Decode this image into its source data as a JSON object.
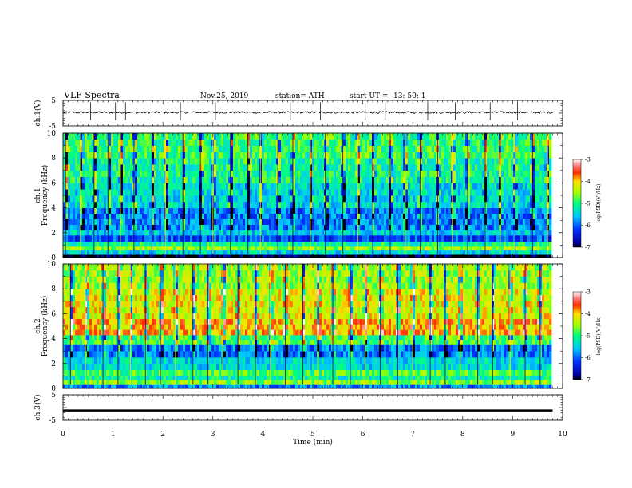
{
  "header": {
    "title": "VLF  Spectra",
    "date": "Nov.25, 2019",
    "station": "station= ATH",
    "start_ut_label": "start  UT  =",
    "start_ut_value": "13: 50: 1"
  },
  "chart_data": [
    {
      "type": "line",
      "panel": "ch1-waveform",
      "ylabel": "ch.1(V)",
      "ylim": [
        -5,
        5
      ],
      "yticks": [
        "5",
        "-5"
      ],
      "xlim": [
        0,
        10
      ],
      "x_end": 9.8,
      "baseline": 0.3,
      "noise_amplitude": 0.4,
      "spike_times": [
        0.55,
        1.05,
        1.25,
        1.7,
        2.35,
        3.05,
        3.6,
        4.55,
        5.15,
        6.05,
        6.45,
        7.3,
        7.85,
        8.55,
        9.1
      ],
      "color": "#000000"
    },
    {
      "type": "heatmap",
      "panel": "ch1-spectrogram",
      "ylabel": "ch.1\nFrequency  (kHz)",
      "xlim": [
        0,
        10
      ],
      "x_end": 9.8,
      "ylim": [
        0,
        10
      ],
      "yticks": [
        "0",
        "2",
        "4",
        "6",
        "8",
        "10"
      ],
      "color_range": [
        -7,
        -3
      ],
      "colorbar_ticks": [
        "-3",
        "-4",
        "-5",
        "-6",
        "-7"
      ],
      "colorbar_label": "log(PSD)(V²/Hz)",
      "bands": [
        {
          "f": [
            0,
            0.25
          ],
          "v": -7.0
        },
        {
          "f": [
            0.25,
            0.6
          ],
          "v": -5.4
        },
        {
          "f": [
            0.6,
            0.9
          ],
          "v": -4.5
        },
        {
          "f": [
            0.9,
            1.3
          ],
          "v": -5.1
        },
        {
          "f": [
            1.3,
            1.8
          ],
          "v": -6.1
        },
        {
          "f": [
            1.8,
            2.2
          ],
          "v": -5.5
        },
        {
          "f": [
            2.2,
            4.0
          ],
          "v": -5.9
        },
        {
          "f": [
            4.0,
            6.0
          ],
          "v": -5.4
        },
        {
          "f": [
            6.0,
            8.0
          ],
          "v": -5.1
        },
        {
          "f": [
            8.0,
            10.0
          ],
          "v": -4.9
        }
      ],
      "sferic_times": [
        0.05,
        0.35,
        0.62,
        0.9,
        1.15,
        1.42,
        1.78,
        2.05,
        2.4,
        2.75,
        3.0,
        3.35,
        3.7,
        3.95,
        4.3,
        4.6,
        4.95,
        5.25,
        5.6,
        5.9,
        6.2,
        6.55,
        6.85,
        7.15,
        7.5,
        7.8,
        8.1,
        8.45,
        8.75,
        9.05,
        9.4,
        9.7
      ]
    },
    {
      "type": "heatmap",
      "panel": "ch2-spectrogram",
      "ylabel": "ch.2\nFrequency  (kHz)",
      "xlim": [
        0,
        10
      ],
      "x_end": 9.8,
      "ylim": [
        0,
        10
      ],
      "yticks": [
        "0",
        "2",
        "4",
        "6",
        "8",
        "10"
      ],
      "color_range": [
        -7,
        -3
      ],
      "colorbar_ticks": [
        "-3",
        "-4",
        "-5",
        "-6",
        "-7"
      ],
      "colorbar_label": "log(PSD)(V²/Hz)",
      "bands": [
        {
          "f": [
            0,
            0.3
          ],
          "v": -5.8
        },
        {
          "f": [
            0.3,
            0.7
          ],
          "v": -4.6
        },
        {
          "f": [
            0.7,
            1.0
          ],
          "v": -5.2
        },
        {
          "f": [
            1.0,
            1.5
          ],
          "v": -4.8
        },
        {
          "f": [
            1.5,
            2.5
          ],
          "v": -5.4
        },
        {
          "f": [
            2.5,
            3.5
          ],
          "v": -5.9
        },
        {
          "f": [
            3.5,
            4.3
          ],
          "v": -4.9
        },
        {
          "f": [
            4.3,
            5.6
          ],
          "v": -3.9
        },
        {
          "f": [
            5.6,
            8.0
          ],
          "v": -4.2
        },
        {
          "f": [
            8.0,
            10.0
          ],
          "v": -4.5
        }
      ],
      "sferic_times": [
        0.15,
        0.45,
        0.8,
        1.1,
        1.35,
        1.65,
        1.95,
        2.25,
        2.6,
        2.9,
        3.2,
        3.5,
        3.85,
        4.15,
        4.45,
        4.8,
        5.1,
        5.4,
        5.75,
        6.05,
        6.35,
        6.7,
        7.0,
        7.35,
        7.65,
        7.95,
        8.3,
        8.6,
        8.95,
        9.25,
        9.55
      ]
    },
    {
      "type": "line",
      "panel": "ch3-waveform",
      "ylabel": "ch.3(V)",
      "ylim": [
        -5,
        5
      ],
      "yticks": [
        "5",
        "-5"
      ],
      "xlim": [
        0,
        10
      ],
      "x_end": 9.8,
      "value": -1.3,
      "color": "#000000",
      "xlabel": "Time  (min)",
      "xticks": [
        "0",
        "1",
        "2",
        "3",
        "4",
        "5",
        "6",
        "7",
        "8",
        "9",
        "10"
      ]
    }
  ]
}
